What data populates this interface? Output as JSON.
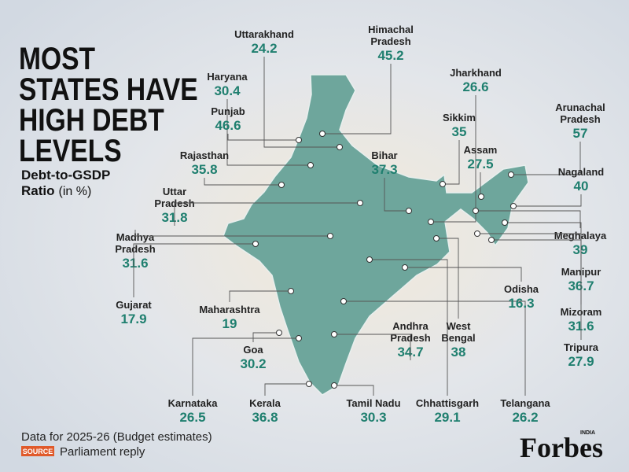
{
  "title": [
    "MOST",
    "STATES HAVE",
    "HIGH DEBT",
    "LEVELS"
  ],
  "subtitle": {
    "lines": [
      "Debt-to-GSDP",
      "Ratio"
    ],
    "unit": "(in %)"
  },
  "states": [
    {
      "name": [
        "Uttarakhand"
      ],
      "value": 24.2
    },
    {
      "name": [
        "Himachal",
        "Pradesh"
      ],
      "value": 45.2
    },
    {
      "name": [
        "Haryana"
      ],
      "value": 30.4
    },
    {
      "name": [
        "Punjab"
      ],
      "value": 46.6
    },
    {
      "name": [
        "Rajasthan"
      ],
      "value": 35.8
    },
    {
      "name": [
        "Uttar",
        "Pradesh"
      ],
      "value": 31.8
    },
    {
      "name": [
        "Madhya",
        "Pradesh"
      ],
      "value": 31.6
    },
    {
      "name": [
        "Gujarat"
      ],
      "value": 17.9
    },
    {
      "name": [
        "Maharashtra"
      ],
      "value": 19
    },
    {
      "name": [
        "Goa"
      ],
      "value": 30.2
    },
    {
      "name": [
        "Karnataka"
      ],
      "value": 26.5
    },
    {
      "name": [
        "Kerala"
      ],
      "value": 36.8
    },
    {
      "name": [
        "Tamil Nadu"
      ],
      "value": 30.3
    },
    {
      "name": [
        "Chhattisgarh"
      ],
      "value": 29.1
    },
    {
      "name": [
        "Telangana"
      ],
      "value": 26.2
    },
    {
      "name": [
        "Andhra",
        "Pradesh"
      ],
      "value": 34.7
    },
    {
      "name": [
        "West",
        "Bengal"
      ],
      "value": 38
    },
    {
      "name": [
        "Bihar"
      ],
      "value": 37.3
    },
    {
      "name": [
        "Jharkhand"
      ],
      "value": 26.6
    },
    {
      "name": [
        "Sikkim"
      ],
      "value": 35
    },
    {
      "name": [
        "Assam"
      ],
      "value": 27.5
    },
    {
      "name": [
        "Arunachal",
        "Pradesh"
      ],
      "value": 57
    },
    {
      "name": [
        "Nagaland"
      ],
      "value": 40
    },
    {
      "name": [
        "Meghalaya"
      ],
      "value": 39
    },
    {
      "name": [
        "Manipur"
      ],
      "value": 36.7
    },
    {
      "name": [
        "Odisha"
      ],
      "value": 16.3
    },
    {
      "name": [
        "Mizoram"
      ],
      "value": 31.6
    },
    {
      "name": [
        "Tripura"
      ],
      "value": 27.9
    }
  ],
  "footer": {
    "note": "Data for 2025-26 (Budget estimates)",
    "source_tag": "SOURCE",
    "source": "Parliament reply"
  },
  "brand": {
    "name": "Forbes",
    "edition": "INDIA"
  }
}
